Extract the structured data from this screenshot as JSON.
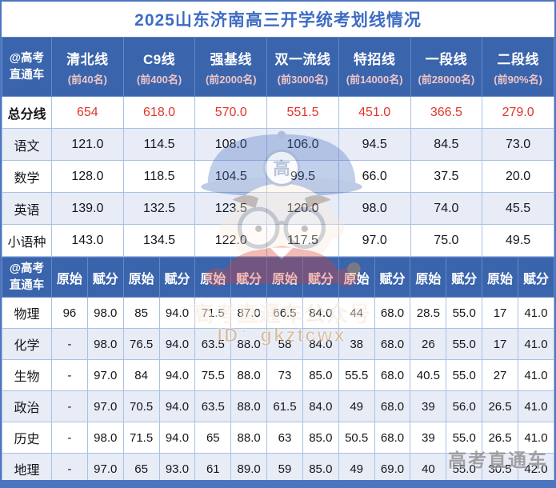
{
  "title": "2025山东济南高三开学统考划线情况",
  "chart_data": [
    {
      "type": "table",
      "corner_label": "@高考直通车",
      "columns": [
        {
          "name": "清北线",
          "sub": "(前40名)"
        },
        {
          "name": "C9线",
          "sub": "(前400名)"
        },
        {
          "name": "强基线",
          "sub": "(前2000名)"
        },
        {
          "name": "双一流线",
          "sub": "(前3000名)"
        },
        {
          "name": "特招线",
          "sub": "(前14000名)"
        },
        {
          "name": "一段线",
          "sub": "(前28000名)"
        },
        {
          "name": "二段线",
          "sub": "(前90%名)"
        }
      ],
      "rows": [
        {
          "label": "总分线",
          "highlight": true,
          "values": [
            "654",
            "618.0",
            "570.0",
            "551.5",
            "451.0",
            "366.5",
            "279.0"
          ]
        },
        {
          "label": "语文",
          "values": [
            "121.0",
            "114.5",
            "108.0",
            "106.0",
            "94.5",
            "84.5",
            "73.0"
          ]
        },
        {
          "label": "数学",
          "values": [
            "128.0",
            "118.5",
            "104.5",
            "99.5",
            "66.0",
            "37.5",
            "20.0"
          ]
        },
        {
          "label": "英语",
          "values": [
            "139.0",
            "132.5",
            "123.5",
            "120.0",
            "98.0",
            "74.0",
            "45.5"
          ]
        },
        {
          "label": "小语种",
          "values": [
            "143.0",
            "134.5",
            "122.0",
            "117.5",
            "97.0",
            "75.0",
            "49.5"
          ]
        }
      ]
    },
    {
      "type": "table",
      "corner_label": "@高考直通车",
      "pair_headers": [
        "原始",
        "赋分"
      ],
      "rows": [
        {
          "label": "物理",
          "values": [
            "96",
            "98.0",
            "85",
            "94.0",
            "71.5",
            "87.0",
            "66.5",
            "84.0",
            "44",
            "68.0",
            "28.5",
            "55.0",
            "17",
            "41.0"
          ]
        },
        {
          "label": "化学",
          "values": [
            "-",
            "98.0",
            "76.5",
            "94.0",
            "63.5",
            "88.0",
            "58",
            "84.0",
            "38",
            "68.0",
            "26",
            "55.0",
            "17",
            "41.0"
          ]
        },
        {
          "label": "生物",
          "values": [
            "-",
            "97.0",
            "84",
            "94.0",
            "75.5",
            "88.0",
            "73",
            "85.0",
            "55.5",
            "68.0",
            "40.5",
            "55.0",
            "27",
            "41.0"
          ]
        },
        {
          "label": "政治",
          "values": [
            "-",
            "97.0",
            "70.5",
            "94.0",
            "63.5",
            "88.0",
            "61.5",
            "84.0",
            "49",
            "68.0",
            "39",
            "56.0",
            "26.5",
            "41.0"
          ]
        },
        {
          "label": "历史",
          "values": [
            "-",
            "98.0",
            "71.5",
            "94.0",
            "65",
            "88.0",
            "63",
            "85.0",
            "50.5",
            "68.0",
            "39",
            "55.0",
            "26.5",
            "41.0"
          ]
        },
        {
          "label": "地理",
          "values": [
            "-",
            "97.0",
            "65",
            "93.0",
            "61",
            "89.0",
            "59",
            "85.0",
            "49",
            "69.0",
            "40",
            "55.0",
            "30.5",
            "42.0"
          ]
        }
      ]
    }
  ],
  "watermarks": {
    "center_line1": "高考直通车公众号",
    "center_line2": "ID：gkztcwx",
    "bottom_right": "高考直通车",
    "cap_badge": "高"
  },
  "colors": {
    "header_blue": "#3a64ac",
    "frame_blue": "#4d75bf",
    "title_blue": "#3d6cc4",
    "highlight_red": "#e3342b",
    "subtitle_pink": "#f0c5c5",
    "alt_row": "#e7ecf7",
    "grid_line": "#aac1e5"
  }
}
